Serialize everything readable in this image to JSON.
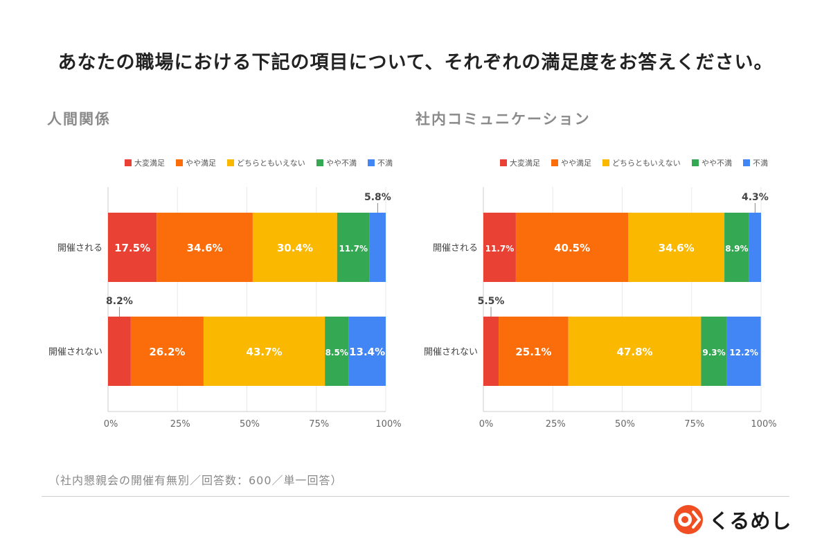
{
  "title": "あなたの職場における下記の項目について、それぞれの満足度をお答えください。",
  "footnote": "（社内懇親会の開催有無別／回答数：600／単一回答）",
  "logo": {
    "text": "くるめし",
    "icon": "kurumeshi-logo-icon"
  },
  "colors": {
    "very_satisfied": "#e94235",
    "somewhat_satisfied": "#fa6d0a",
    "neutral": "#fbb800",
    "somewhat_dissatisfied": "#34a853",
    "dissatisfied": "#4285f4"
  },
  "chart_data": [
    {
      "type": "bar",
      "orientation": "horizontal-stacked-100",
      "title": "人間関係",
      "categories": [
        "開催される",
        "開催されない"
      ],
      "series": [
        {
          "name": "大変満足",
          "values": [
            17.5,
            8.2
          ]
        },
        {
          "name": "やや満足",
          "values": [
            34.6,
            26.2
          ]
        },
        {
          "name": "どちらともいえない",
          "values": [
            30.4,
            43.7
          ]
        },
        {
          "name": "やや不満",
          "values": [
            11.7,
            8.5
          ]
        },
        {
          "name": "不満",
          "values": [
            5.8,
            13.4
          ]
        }
      ],
      "data_labels": [
        [
          "17.5%",
          "34.6%",
          "30.4%",
          "11.7%",
          "5.8%"
        ],
        [
          "8.2%",
          "26.2%",
          "43.7%",
          "8.5%",
          "13.4%"
        ]
      ],
      "xlim": [
        0,
        100
      ],
      "xticks": [
        "0%",
        "25%",
        "50%",
        "75%",
        "100%"
      ],
      "legend": "top"
    },
    {
      "type": "bar",
      "orientation": "horizontal-stacked-100",
      "title": "社内コミュニケーション",
      "categories": [
        "開催される",
        "開催されない"
      ],
      "series": [
        {
          "name": "大変満足",
          "values": [
            11.7,
            5.5
          ]
        },
        {
          "name": "やや満足",
          "values": [
            40.5,
            25.1
          ]
        },
        {
          "name": "どちらともいえない",
          "values": [
            34.6,
            47.8
          ]
        },
        {
          "name": "やや不満",
          "values": [
            8.9,
            9.3
          ]
        },
        {
          "name": "不満",
          "values": [
            4.3,
            12.2
          ]
        }
      ],
      "data_labels": [
        [
          "11.7%",
          "40.5%",
          "34.6%",
          "8.9%",
          "4.3%"
        ],
        [
          "5.5%",
          "25.1%",
          "47.8%",
          "9.3%",
          "12.2%"
        ]
      ],
      "xlim": [
        0,
        100
      ],
      "xticks": [
        "0%",
        "25%",
        "50%",
        "75%",
        "100%"
      ],
      "legend": "top"
    }
  ]
}
